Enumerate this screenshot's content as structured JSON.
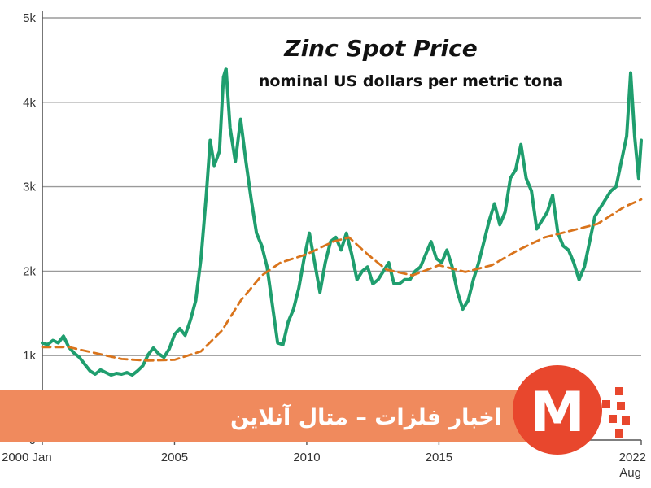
{
  "chart_data": {
    "type": "line",
    "title": "Zinc Spot Price",
    "subtitle": "nominal US dollars per metric tona",
    "xlabel": "",
    "ylabel": "",
    "xlim": [
      2000.0,
      2022.65
    ],
    "ylim": [
      0,
      5000
    ],
    "grid": "horizontal",
    "y_ticks": [
      {
        "value": 0,
        "label": "0"
      },
      {
        "value": 1000,
        "label": "1k"
      },
      {
        "value": 2000,
        "label": "2k"
      },
      {
        "value": 3000,
        "label": "3k"
      },
      {
        "value": 4000,
        "label": "4k"
      },
      {
        "value": 5000,
        "label": "5k"
      }
    ],
    "x_ticks": [
      {
        "value": 2000.0,
        "label": "2000 Jan",
        "anchor": "start"
      },
      {
        "value": 2005.0,
        "label": "2005",
        "anchor": "middle"
      },
      {
        "value": 2010.0,
        "label": "2010",
        "anchor": "middle"
      },
      {
        "value": 2015.0,
        "label": "2015",
        "anchor": "middle"
      },
      {
        "value": 2022.65,
        "label": "2022",
        "sublabel": "Aug",
        "anchor": "end"
      }
    ],
    "series": [
      {
        "color": "#1f9e6e",
        "style": "solid",
        "points": [
          [
            2000.0,
            1150
          ],
          [
            2000.2,
            1130
          ],
          [
            2000.4,
            1180
          ],
          [
            2000.6,
            1150
          ],
          [
            2000.8,
            1230
          ],
          [
            2001.0,
            1100
          ],
          [
            2001.2,
            1030
          ],
          [
            2001.4,
            980
          ],
          [
            2001.6,
            900
          ],
          [
            2001.8,
            820
          ],
          [
            2002.0,
            780
          ],
          [
            2002.2,
            830
          ],
          [
            2002.4,
            800
          ],
          [
            2002.6,
            770
          ],
          [
            2002.8,
            790
          ],
          [
            2003.0,
            780
          ],
          [
            2003.2,
            800
          ],
          [
            2003.4,
            770
          ],
          [
            2003.6,
            820
          ],
          [
            2003.8,
            880
          ],
          [
            2004.0,
            1010
          ],
          [
            2004.2,
            1090
          ],
          [
            2004.4,
            1020
          ],
          [
            2004.6,
            980
          ],
          [
            2004.8,
            1080
          ],
          [
            2005.0,
            1250
          ],
          [
            2005.2,
            1320
          ],
          [
            2005.4,
            1240
          ],
          [
            2005.6,
            1420
          ],
          [
            2005.8,
            1650
          ],
          [
            2006.0,
            2150
          ],
          [
            2006.2,
            2900
          ],
          [
            2006.35,
            3550
          ],
          [
            2006.5,
            3250
          ],
          [
            2006.7,
            3420
          ],
          [
            2006.85,
            4300
          ],
          [
            2006.95,
            4400
          ],
          [
            2007.1,
            3700
          ],
          [
            2007.3,
            3300
          ],
          [
            2007.5,
            3800
          ],
          [
            2007.7,
            3300
          ],
          [
            2007.9,
            2850
          ],
          [
            2008.1,
            2450
          ],
          [
            2008.3,
            2300
          ],
          [
            2008.5,
            2050
          ],
          [
            2008.7,
            1600
          ],
          [
            2008.9,
            1150
          ],
          [
            2009.1,
            1130
          ],
          [
            2009.3,
            1400
          ],
          [
            2009.5,
            1550
          ],
          [
            2009.7,
            1800
          ],
          [
            2009.9,
            2150
          ],
          [
            2010.1,
            2450
          ],
          [
            2010.3,
            2100
          ],
          [
            2010.5,
            1750
          ],
          [
            2010.7,
            2100
          ],
          [
            2010.9,
            2350
          ],
          [
            2011.1,
            2400
          ],
          [
            2011.3,
            2250
          ],
          [
            2011.5,
            2450
          ],
          [
            2011.7,
            2200
          ],
          [
            2011.9,
            1900
          ],
          [
            2012.1,
            2000
          ],
          [
            2012.3,
            2050
          ],
          [
            2012.5,
            1850
          ],
          [
            2012.7,
            1900
          ],
          [
            2012.9,
            2000
          ],
          [
            2013.1,
            2100
          ],
          [
            2013.3,
            1850
          ],
          [
            2013.5,
            1850
          ],
          [
            2013.7,
            1900
          ],
          [
            2013.9,
            1900
          ],
          [
            2014.1,
            2000
          ],
          [
            2014.3,
            2050
          ],
          [
            2014.5,
            2200
          ],
          [
            2014.7,
            2350
          ],
          [
            2014.9,
            2150
          ],
          [
            2015.1,
            2100
          ],
          [
            2015.3,
            2250
          ],
          [
            2015.5,
            2050
          ],
          [
            2015.7,
            1750
          ],
          [
            2015.9,
            1550
          ],
          [
            2016.1,
            1650
          ],
          [
            2016.3,
            1900
          ],
          [
            2016.5,
            2100
          ],
          [
            2016.7,
            2350
          ],
          [
            2016.9,
            2600
          ],
          [
            2017.1,
            2800
          ],
          [
            2017.3,
            2550
          ],
          [
            2017.5,
            2700
          ],
          [
            2017.7,
            3100
          ],
          [
            2017.9,
            3200
          ],
          [
            2018.1,
            3500
          ],
          [
            2018.3,
            3100
          ],
          [
            2018.5,
            2950
          ],
          [
            2018.7,
            2500
          ],
          [
            2018.9,
            2600
          ],
          [
            2019.1,
            2700
          ],
          [
            2019.3,
            2900
          ],
          [
            2019.5,
            2450
          ],
          [
            2019.7,
            2300
          ],
          [
            2019.9,
            2250
          ],
          [
            2020.1,
            2100
          ],
          [
            2020.3,
            1900
          ],
          [
            2020.5,
            2050
          ],
          [
            2020.7,
            2350
          ],
          [
            2020.9,
            2650
          ],
          [
            2021.1,
            2750
          ],
          [
            2021.3,
            2850
          ],
          [
            2021.5,
            2950
          ],
          [
            2021.7,
            3000
          ],
          [
            2021.9,
            3300
          ],
          [
            2022.1,
            3600
          ],
          [
            2022.25,
            4350
          ],
          [
            2022.4,
            3600
          ],
          [
            2022.55,
            3100
          ],
          [
            2022.65,
            3550
          ]
        ]
      },
      {
        "color": "#d9741c",
        "style": "dashed",
        "points": [
          [
            2000.0,
            1100
          ],
          [
            2001.0,
            1100
          ],
          [
            2002.0,
            1030
          ],
          [
            2003.0,
            960
          ],
          [
            2004.0,
            940
          ],
          [
            2005.0,
            950
          ],
          [
            2006.0,
            1050
          ],
          [
            2006.8,
            1300
          ],
          [
            2007.5,
            1650
          ],
          [
            2008.3,
            1950
          ],
          [
            2009.0,
            2100
          ],
          [
            2010.0,
            2200
          ],
          [
            2011.0,
            2350
          ],
          [
            2011.6,
            2400
          ],
          [
            2012.3,
            2200
          ],
          [
            2013.0,
            2020
          ],
          [
            2014.0,
            1950
          ],
          [
            2015.0,
            2070
          ],
          [
            2016.0,
            1990
          ],
          [
            2017.0,
            2070
          ],
          [
            2018.0,
            2250
          ],
          [
            2019.0,
            2400
          ],
          [
            2020.0,
            2480
          ],
          [
            2021.0,
            2560
          ],
          [
            2022.0,
            2760
          ],
          [
            2022.65,
            2850
          ]
        ]
      }
    ]
  },
  "banner": {
    "text": "اخبار فلزات – متال آنلاین",
    "color": "#f08a5d"
  },
  "logo": {
    "glyph": "M",
    "color": "#e8472d"
  }
}
